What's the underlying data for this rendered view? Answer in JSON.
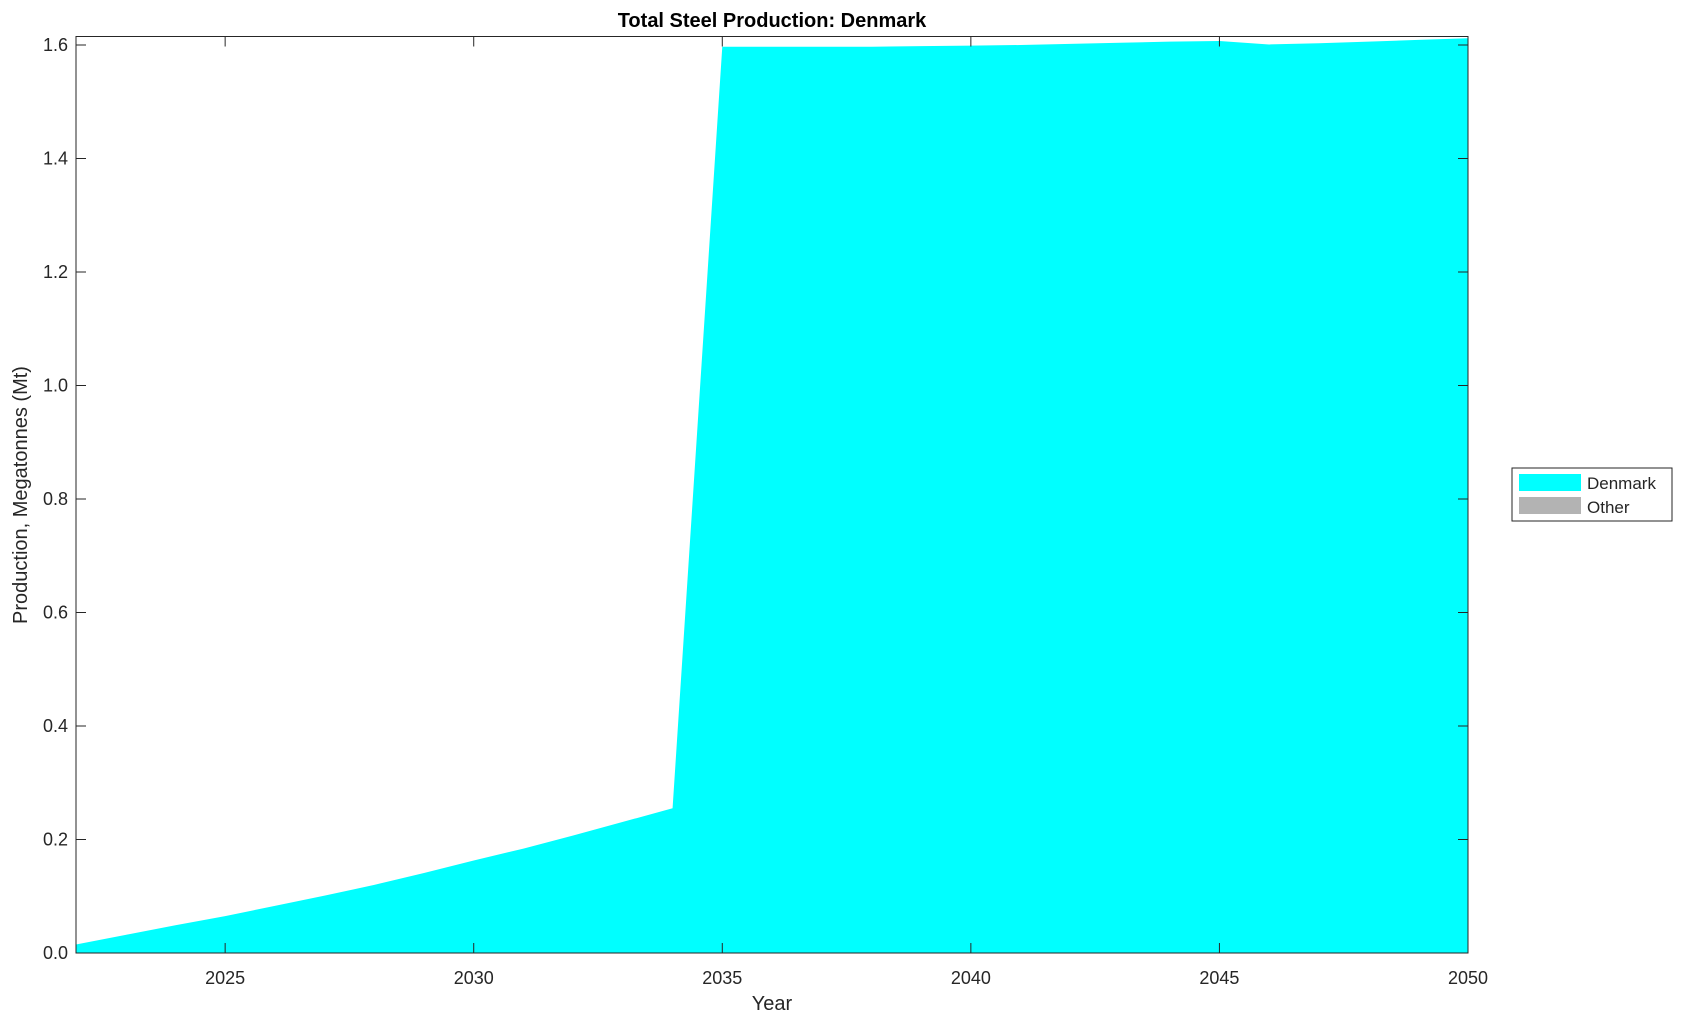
{
  "chart_data": {
    "type": "area",
    "title": "Total Steel Production: Denmark",
    "xlabel": "Year",
    "ylabel": "Production, Megatonnes (Mt)",
    "xlim": [
      2022,
      2050
    ],
    "ylim": [
      0,
      1.615
    ],
    "xticks": [
      2025,
      2030,
      2035,
      2040,
      2045,
      2050
    ],
    "yticks": [
      "0.0",
      "0.2",
      "0.4",
      "0.6",
      "0.8",
      "1.0",
      "1.2",
      "1.4",
      "1.6"
    ],
    "grid": false,
    "stacked": true,
    "legend_position": "right",
    "x": [
      2022,
      2023,
      2024,
      2025,
      2026,
      2027,
      2028,
      2029,
      2030,
      2031,
      2032,
      2033,
      2034,
      2035,
      2036,
      2037,
      2038,
      2039,
      2040,
      2041,
      2042,
      2043,
      2044,
      2045,
      2046,
      2047,
      2048,
      2049,
      2050
    ],
    "series": [
      {
        "name": "Denmark",
        "color": "#00FFFF",
        "values": [
          0.015,
          0.032,
          0.049,
          0.065,
          0.083,
          0.101,
          0.12,
          0.141,
          0.163,
          0.184,
          0.207,
          0.231,
          0.255,
          1.597,
          1.597,
          1.597,
          1.597,
          1.598,
          1.599,
          1.6,
          1.602,
          1.604,
          1.606,
          1.607,
          1.601,
          1.603,
          1.606,
          1.609,
          1.612
        ]
      },
      {
        "name": "Other",
        "color": "#B3B3B3",
        "values": [
          0,
          0,
          0,
          0,
          0,
          0,
          0,
          0,
          0,
          0,
          0,
          0,
          0,
          0,
          0,
          0,
          0,
          0,
          0,
          0,
          0,
          0,
          0,
          0,
          0,
          0,
          0,
          0,
          0
        ]
      }
    ]
  }
}
